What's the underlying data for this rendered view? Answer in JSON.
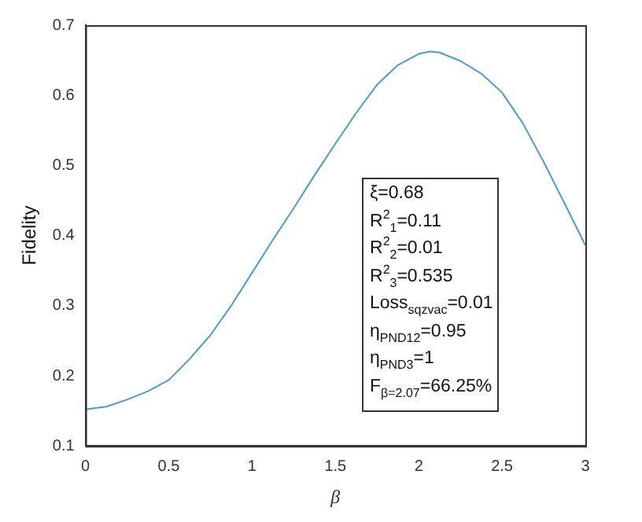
{
  "chart_data": {
    "type": "line",
    "xlabel": "β",
    "ylabel": "Fidelity",
    "x": [
      0,
      0.125,
      0.25,
      0.375,
      0.5,
      0.625,
      0.75,
      0.875,
      1,
      1.125,
      1.25,
      1.375,
      1.5,
      1.625,
      1.75,
      1.875,
      2,
      2.07,
      2.125,
      2.25,
      2.375,
      2.5,
      2.625,
      2.75,
      2.875,
      3
    ],
    "series": [
      {
        "color": "#4a9ad6",
        "values": [
          0.152,
          0.156,
          0.166,
          0.178,
          0.194,
          0.224,
          0.258,
          0.3,
          0.347,
          0.394,
          0.439,
          0.486,
          0.531,
          0.575,
          0.615,
          0.643,
          0.659,
          0.6625,
          0.661,
          0.649,
          0.631,
          0.604,
          0.56,
          0.505,
          0.446,
          0.386
        ]
      }
    ],
    "xlim": [
      0,
      3
    ],
    "xticks": [
      0,
      0.5,
      1,
      1.5,
      2,
      2.5,
      3
    ],
    "ylim": [
      0.1,
      0.7
    ],
    "yticks": [
      0.1,
      0.2,
      0.3,
      0.4,
      0.5,
      0.6,
      0.7
    ],
    "annotations": [
      "ξ=0.68",
      "R$^{2}$$_{1}$=0.11",
      "R$^{2}$$_{2}$=0.01",
      "R$^{2}$$_{3}$=0.535",
      "Loss$_{sqzvac}$=0.01",
      "η$_{PND12}$=0.95",
      "η$_{PND3}$=1",
      "F$_{β=2.07}$=66.25%"
    ],
    "grid": false,
    "legend": false,
    "marker": "none",
    "line_style": "solid"
  }
}
